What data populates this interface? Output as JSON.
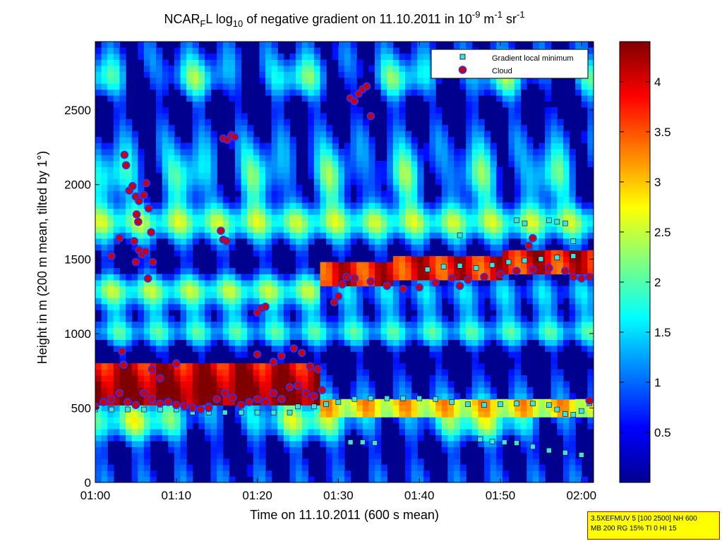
{
  "title": {
    "main": "NCAR",
    "sub_f": "F",
    "after_f": "L log",
    "sub_10": "10",
    "middle": " of negative gradient on 11.10.2011 in 10",
    "sup_1": "-9",
    "unit_m": " m",
    "sup_2": "-1",
    "unit_sr": " sr",
    "sup_3": "-1"
  },
  "info_box": {
    "line1": "3.5XEFMUV 5 [100 2500] NH 600",
    "line2": "MB 200 RG 15% TI 0 HI 15",
    "border_color": "#d40000",
    "fill_color": "#ffff00"
  },
  "chart_data": {
    "type": "heatmap",
    "xlabel": "Time on 11.10.2011 (600 s mean)",
    "ylabel": "Height in m (200 m mean, tilted by 1°)",
    "x_unit": "minutes after 01:00",
    "xlim": [
      0,
      61.5
    ],
    "ylim": [
      0,
      2960
    ],
    "x_ticks": [
      {
        "value": 0,
        "label": "01:00"
      },
      {
        "value": 10,
        "label": "01:10"
      },
      {
        "value": 20,
        "label": "01:20"
      },
      {
        "value": 30,
        "label": "01:30"
      },
      {
        "value": 40,
        "label": "01:40"
      },
      {
        "value": 50,
        "label": "01:50"
      },
      {
        "value": 60,
        "label": "02:00"
      }
    ],
    "y_ticks": [
      0,
      500,
      1000,
      1500,
      2000,
      2500
    ],
    "colorbar": {
      "range": [
        0,
        4.4
      ],
      "ticks": [
        0.5,
        1,
        1.5,
        2,
        2.5,
        3,
        3.5,
        4
      ],
      "colormap": "jet"
    },
    "legend": {
      "placement": "top-right",
      "entries": [
        {
          "label": "Gradient local minimum",
          "marker": "square",
          "color": "#40e0e0"
        },
        {
          "label": "Cloud",
          "marker": "circle",
          "color": "#cc0000"
        }
      ]
    },
    "series": [
      {
        "name": "Gradient local minimum",
        "points": [
          [
            0,
            490
          ],
          [
            2,
            490
          ],
          [
            4,
            490
          ],
          [
            6,
            490
          ],
          [
            8,
            490
          ],
          [
            10,
            490
          ],
          [
            12,
            470
          ],
          [
            14,
            470
          ],
          [
            16,
            470
          ],
          [
            18,
            470
          ],
          [
            20,
            470
          ],
          [
            22,
            470
          ],
          [
            24,
            470
          ],
          [
            25,
            510
          ],
          [
            27,
            510
          ],
          [
            28.5,
            525
          ],
          [
            30,
            540
          ],
          [
            32,
            560
          ],
          [
            34,
            565
          ],
          [
            36,
            565
          ],
          [
            38,
            565
          ],
          [
            40,
            565
          ],
          [
            42,
            560
          ],
          [
            44,
            540
          ],
          [
            46,
            525
          ],
          [
            48,
            520
          ],
          [
            50,
            525
          ],
          [
            52,
            530
          ],
          [
            54,
            530
          ],
          [
            56,
            520
          ],
          [
            57,
            490
          ],
          [
            58,
            460
          ],
          [
            59,
            455
          ],
          [
            60,
            480
          ],
          [
            61,
            530
          ],
          [
            31.5,
            270
          ],
          [
            33,
            270
          ],
          [
            34.5,
            265
          ],
          [
            47.5,
            290
          ],
          [
            49,
            275
          ],
          [
            50.5,
            270
          ],
          [
            52,
            265
          ],
          [
            54,
            240
          ],
          [
            56,
            215
          ],
          [
            58,
            200
          ],
          [
            60,
            185
          ],
          [
            45,
            1660
          ],
          [
            52,
            1760
          ],
          [
            53,
            1740
          ],
          [
            56,
            1760
          ],
          [
            57,
            1750
          ],
          [
            58,
            1740
          ],
          [
            59,
            1620
          ],
          [
            41,
            1430
          ],
          [
            43,
            1450
          ],
          [
            45,
            1455
          ],
          [
            47,
            1440
          ],
          [
            49,
            1460
          ],
          [
            51,
            1480
          ],
          [
            53,
            1490
          ],
          [
            55,
            1500
          ],
          [
            57,
            1510
          ],
          [
            59,
            1520
          ]
        ]
      },
      {
        "name": "Cloud",
        "points": [
          [
            0,
            510
          ],
          [
            1,
            540
          ],
          [
            2,
            560
          ],
          [
            3,
            600
          ],
          [
            4,
            540
          ],
          [
            5,
            520
          ],
          [
            6,
            600
          ],
          [
            7,
            560
          ],
          [
            8,
            530
          ],
          [
            9,
            540
          ],
          [
            10,
            520
          ],
          [
            11,
            510
          ],
          [
            12,
            500
          ],
          [
            13,
            490
          ],
          [
            14,
            510
          ],
          [
            15,
            560
          ],
          [
            16,
            600
          ],
          [
            17,
            570
          ],
          [
            18,
            520
          ],
          [
            19,
            540
          ],
          [
            20,
            560
          ],
          [
            21,
            540
          ],
          [
            22,
            600
          ],
          [
            23,
            560
          ],
          [
            24,
            640
          ],
          [
            25,
            650
          ],
          [
            26,
            600
          ],
          [
            27,
            580
          ],
          [
            28,
            620
          ],
          [
            3.3,
            880
          ],
          [
            3.5,
            790
          ],
          [
            7,
            760
          ],
          [
            8,
            700
          ],
          [
            10,
            800
          ],
          [
            14,
            500
          ],
          [
            20,
            860
          ],
          [
            22,
            810
          ],
          [
            23,
            850
          ],
          [
            24.5,
            900
          ],
          [
            25.5,
            870
          ],
          [
            26.5,
            780
          ],
          [
            27.5,
            760
          ],
          [
            2,
            1520
          ],
          [
            3,
            1640
          ],
          [
            3.6,
            2200
          ],
          [
            3.8,
            2130
          ],
          [
            4.2,
            1960
          ],
          [
            4.6,
            1990
          ],
          [
            5,
            1920
          ],
          [
            5.4,
            1890
          ],
          [
            5.1,
            1800
          ],
          [
            5.3,
            1750
          ],
          [
            4.8,
            1620
          ],
          [
            5.4,
            1560
          ],
          [
            5.8,
            1530
          ],
          [
            6.2,
            1550
          ],
          [
            6.5,
            1370
          ],
          [
            6,
            1930
          ],
          [
            6.3,
            2010
          ],
          [
            6.6,
            1840
          ],
          [
            6.9,
            1680
          ],
          [
            7.1,
            1480
          ],
          [
            5,
            1480
          ],
          [
            15.5,
            1690
          ],
          [
            15.8,
            1630
          ],
          [
            16.2,
            1620
          ],
          [
            15.8,
            2310
          ],
          [
            16.3,
            2300
          ],
          [
            16.8,
            2330
          ],
          [
            17.2,
            2320
          ],
          [
            20,
            1140
          ],
          [
            20.5,
            1170
          ],
          [
            21,
            1180
          ],
          [
            29.5,
            1210
          ],
          [
            30,
            1250
          ],
          [
            30.5,
            1330
          ],
          [
            31,
            1380
          ],
          [
            31.5,
            2580
          ],
          [
            32,
            2560
          ],
          [
            32.5,
            2610
          ],
          [
            33,
            2640
          ],
          [
            33.5,
            2660
          ],
          [
            34,
            2460
          ],
          [
            32,
            1370
          ],
          [
            34,
            1350
          ],
          [
            36,
            1320
          ],
          [
            38,
            1300
          ],
          [
            40,
            1310
          ],
          [
            42,
            1340
          ],
          [
            44,
            1370
          ],
          [
            46,
            1360
          ],
          [
            48,
            1380
          ],
          [
            50,
            1400
          ],
          [
            52,
            1420
          ],
          [
            54,
            1430
          ],
          [
            56,
            1440
          ],
          [
            58,
            1420
          ],
          [
            59,
            1380
          ],
          [
            60,
            1370
          ],
          [
            61,
            1380
          ],
          [
            45,
            1320
          ],
          [
            53.5,
            1590
          ],
          [
            54,
            1640
          ],
          [
            61,
            550
          ]
        ]
      }
    ]
  }
}
